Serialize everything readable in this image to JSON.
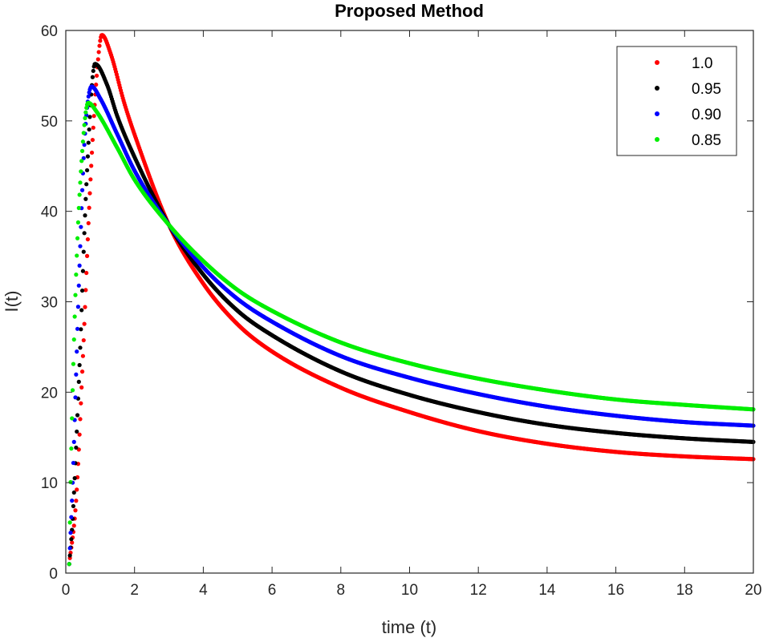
{
  "chart_data": {
    "type": "scatter",
    "title": "Proposed Method",
    "xlabel": "time (t)",
    "ylabel": "I(t)",
    "xlim": [
      0,
      20
    ],
    "ylim": [
      0,
      60
    ],
    "xticks": [
      0,
      2,
      4,
      6,
      8,
      10,
      12,
      14,
      16,
      18,
      20
    ],
    "yticks": [
      0,
      10,
      20,
      30,
      40,
      50,
      60
    ],
    "xtick_labels": [
      "0",
      "2",
      "4",
      "6",
      "8",
      "10",
      "12",
      "14",
      "16",
      "18",
      "20"
    ],
    "ytick_labels": [
      "0",
      "10",
      "20",
      "30",
      "40",
      "50",
      "60"
    ],
    "legend_position": "top-right",
    "x_step": 0.02,
    "series": [
      {
        "name": "1.0",
        "color": "#ff0000",
        "peak_t": 1.05,
        "peak_value": 59.5,
        "anchors": [
          [
            0.1,
            1
          ],
          [
            0.3,
            8
          ],
          [
            0.5,
            24
          ],
          [
            0.7,
            42
          ],
          [
            0.9,
            55
          ],
          [
            1.05,
            59.5
          ],
          [
            1.3,
            57.5
          ],
          [
            1.7,
            52
          ],
          [
            2.0,
            48.5
          ],
          [
            3.0,
            38.5
          ],
          [
            4.0,
            32
          ],
          [
            5.0,
            27.5
          ],
          [
            6.0,
            24.5
          ],
          [
            8.0,
            20.5
          ],
          [
            10.0,
            17.8
          ],
          [
            12.0,
            15.7
          ],
          [
            14.0,
            14.3
          ],
          [
            16.0,
            13.4
          ],
          [
            18.0,
            12.9
          ],
          [
            20.0,
            12.6
          ]
        ]
      },
      {
        "name": "0.95",
        "color": "#000000",
        "peak_t": 0.85,
        "peak_value": 56.3,
        "anchors": [
          [
            0.1,
            1
          ],
          [
            0.2,
            6
          ],
          [
            0.4,
            23
          ],
          [
            0.6,
            43
          ],
          [
            0.85,
            56.3
          ],
          [
            1.2,
            54
          ],
          [
            1.5,
            50.5
          ],
          [
            2.0,
            46
          ],
          [
            3.0,
            38.5
          ],
          [
            4.0,
            33
          ],
          [
            5.0,
            29
          ],
          [
            6.0,
            26.3
          ],
          [
            8.0,
            22.3
          ],
          [
            10.0,
            19.7
          ],
          [
            12.0,
            17.8
          ],
          [
            14.0,
            16.4
          ],
          [
            16.0,
            15.5
          ],
          [
            18.0,
            14.9
          ],
          [
            20.0,
            14.5
          ]
        ]
      },
      {
        "name": "0.90",
        "color": "#0000ff",
        "peak_t": 0.75,
        "peak_value": 53.8,
        "anchors": [
          [
            0.1,
            1
          ],
          [
            0.2,
            10
          ],
          [
            0.4,
            34
          ],
          [
            0.55,
            48
          ],
          [
            0.75,
            53.8
          ],
          [
            1.0,
            52.5
          ],
          [
            1.5,
            48.5
          ],
          [
            2.0,
            44.5
          ],
          [
            3.0,
            38.5
          ],
          [
            4.0,
            33.8
          ],
          [
            5.0,
            30.3
          ],
          [
            6.0,
            27.8
          ],
          [
            8.0,
            24
          ],
          [
            10.0,
            21.6
          ],
          [
            12.0,
            19.8
          ],
          [
            14.0,
            18.4
          ],
          [
            16.0,
            17.4
          ],
          [
            18.0,
            16.7
          ],
          [
            20.0,
            16.3
          ]
        ]
      },
      {
        "name": "0.85",
        "color": "#00ee00",
        "peak_t": 0.65,
        "peak_value": 52.0,
        "anchors": [
          [
            0.1,
            1
          ],
          [
            0.15,
            12
          ],
          [
            0.3,
            33
          ],
          [
            0.45,
            45
          ],
          [
            0.65,
            52
          ],
          [
            0.9,
            51
          ],
          [
            1.5,
            47
          ],
          [
            2.0,
            43.5
          ],
          [
            3.0,
            38.5
          ],
          [
            4.0,
            34.5
          ],
          [
            5.0,
            31.3
          ],
          [
            6.0,
            29
          ],
          [
            8.0,
            25.5
          ],
          [
            10.0,
            23.2
          ],
          [
            12.0,
            21.5
          ],
          [
            14.0,
            20.2
          ],
          [
            16.0,
            19.2
          ],
          [
            18.0,
            18.6
          ],
          [
            20.0,
            18.1
          ]
        ]
      }
    ]
  }
}
